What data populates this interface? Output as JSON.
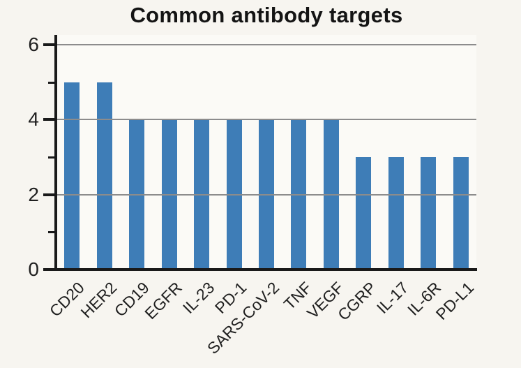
{
  "chart_data": {
    "type": "bar",
    "title": "Common antibody targets",
    "categories": [
      "CD20",
      "HER2",
      "CD19",
      "EGFR",
      "IL-23",
      "PD-1",
      "SARS-CoV-2",
      "TNF",
      "VEGF",
      "CGRP",
      "IL-17",
      "IL-6R",
      "PD-L1"
    ],
    "values": [
      5,
      5,
      4,
      4,
      4,
      4,
      4,
      4,
      4,
      3,
      3,
      3,
      3
    ],
    "xlabel": "",
    "ylabel": "",
    "ylim": [
      0,
      6
    ],
    "yticks": [
      0,
      2,
      4,
      6
    ],
    "minor_yticks": [
      1,
      3,
      5
    ],
    "grid": "horizontal-at-major-ticks-drawn-over-bars",
    "legend": null,
    "x_tick_rotation_deg": 45,
    "colors": {
      "bar": "#3e7db7",
      "grid": "#8c8c8c",
      "axis": "#1a1a1a",
      "text": "#1f1f1f",
      "title_text": "#141414",
      "page_background": "#f7f5f0",
      "plot_background": "#fbfaf6"
    }
  }
}
